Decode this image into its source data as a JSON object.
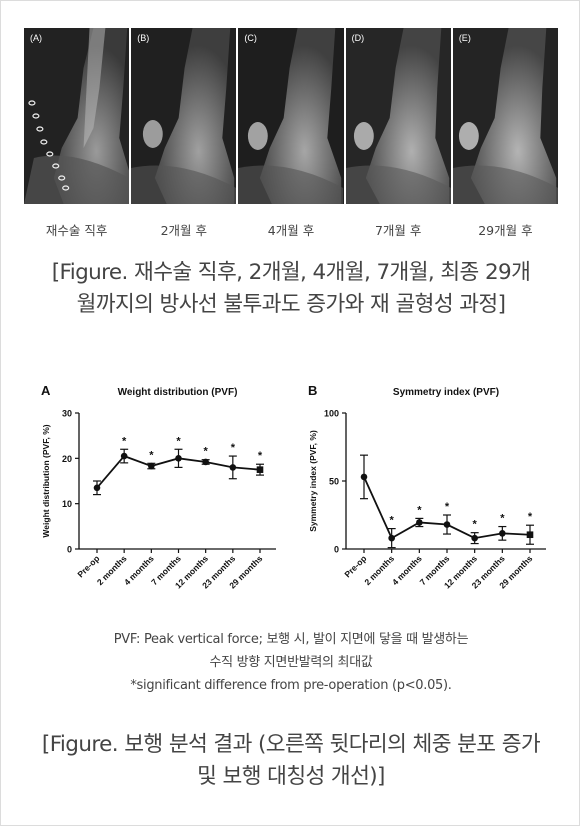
{
  "xray_panels": [
    {
      "tag": "(A)",
      "caption": "재수술 직후"
    },
    {
      "tag": "(B)",
      "caption": "2개월 후"
    },
    {
      "tag": "(C)",
      "caption": "4개월 후"
    },
    {
      "tag": "(D)",
      "caption": "7개월 후"
    },
    {
      "tag": "(E)",
      "caption": "29개월 후"
    }
  ],
  "figure1_caption": {
    "line1": "[Figure. 재수술 직후, 2개월, 4개월, 7개월, 최종 29개",
    "line2": "월까지의 방사선 불투과도 증가와 재 골형성 과정]"
  },
  "chart_data": [
    {
      "type": "line",
      "panel_label": "A",
      "title": "Weight distribution (PVF)",
      "ylabel": "Weight distribution (PVF, %)",
      "xlabel": "",
      "categories": [
        "Pre-op",
        "2 months",
        "4 months",
        "7 months",
        "12 months",
        "23 months",
        "29 months"
      ],
      "values": [
        13.5,
        20.5,
        18.3,
        20.0,
        19.2,
        18.0,
        17.5
      ],
      "errors": [
        1.5,
        1.5,
        0.6,
        2.0,
        0.5,
        2.5,
        1.2
      ],
      "markers": [
        "*",
        "*",
        "*",
        "*",
        "*",
        "*"
      ],
      "significant": [
        false,
        true,
        true,
        true,
        true,
        true,
        true
      ],
      "ylim": [
        0,
        30
      ],
      "yticks": [
        0,
        10,
        20,
        30
      ],
      "grid": false,
      "colors": {
        "line": "#111111"
      }
    },
    {
      "type": "line",
      "panel_label": "B",
      "title": "Symmetry index (PVF)",
      "ylabel": "Symmetry index (PVF, %)",
      "xlabel": "",
      "categories": [
        "Pre-op",
        "2 months",
        "4 months",
        "7 months",
        "12 months",
        "23 months",
        "29 months"
      ],
      "values": [
        53,
        8,
        19.5,
        18,
        8,
        11.5,
        10.5
      ],
      "errors": [
        16,
        7,
        3,
        7,
        4,
        5,
        7
      ],
      "markers": [
        "*",
        "*",
        "*",
        "*",
        "*",
        "*"
      ],
      "significant": [
        false,
        true,
        true,
        true,
        true,
        true,
        true
      ],
      "ylim": [
        0,
        100
      ],
      "yticks": [
        0,
        50,
        100
      ],
      "grid": false,
      "colors": {
        "line": "#111111"
      }
    }
  ],
  "notes": {
    "line1": "PVF: Peak vertical force; 보행 시, 발이 지면에 닿을 때 발생하는",
    "line2": "수직 방향 지면반발력의 최대값",
    "line3": "*significant difference from pre‐operation (p<0.05)."
  },
  "figure2_caption": {
    "line1": "[Figure. 보행 분석 결과 (오른쪽 뒷다리의 체중 분포 증가",
    "line2": "및 보행 대칭성 개선)]"
  }
}
